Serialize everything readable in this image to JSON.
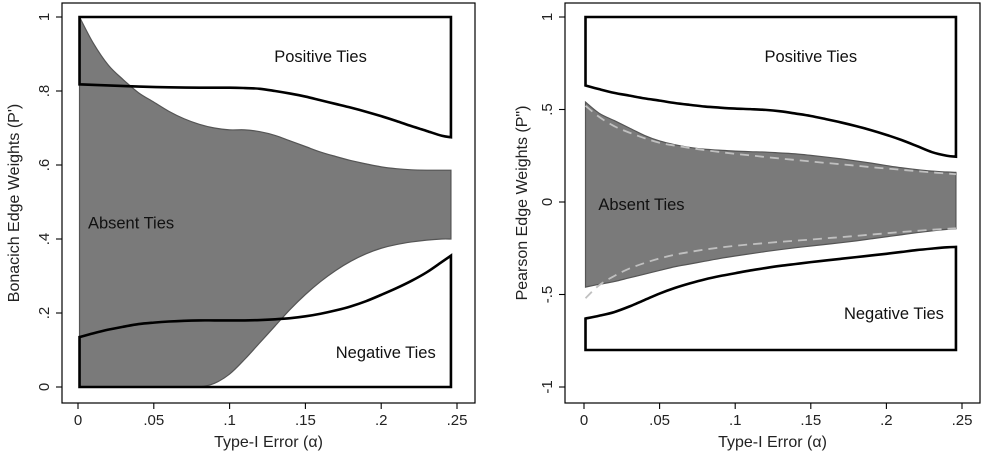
{
  "chart_data": [
    {
      "type": "area",
      "xlabel": "Type-I Error (α)",
      "ylabel": "Bonacich Edge Weights (P')",
      "xlim": [
        0,
        0.25
      ],
      "ylim": [
        0,
        1
      ],
      "xticks": [
        0,
        0.05,
        0.1,
        0.15,
        0.2,
        0.25
      ],
      "xtick_labels": [
        "0",
        ".05",
        ".1",
        ".15",
        ".2",
        ".25"
      ],
      "yticks": [
        0,
        0.2,
        0.4,
        0.6,
        0.8,
        1
      ],
      "ytick_labels": [
        "0",
        ".2",
        ".4",
        ".6",
        ".8",
        "1"
      ],
      "regions": [
        {
          "label": "Positive Ties",
          "x": 0.16,
          "y": 0.895
        },
        {
          "label": "Absent Ties",
          "x": 0.035,
          "y": 0.445
        },
        {
          "label": "Negative Ties",
          "x": 0.203,
          "y": 0.095
        }
      ],
      "absent_band": {
        "x": [
          0.001,
          0.01,
          0.02,
          0.03,
          0.04,
          0.05,
          0.06,
          0.07,
          0.08,
          0.09,
          0.1,
          0.11,
          0.12,
          0.13,
          0.14,
          0.15,
          0.16,
          0.17,
          0.18,
          0.19,
          0.2,
          0.21,
          0.22,
          0.23,
          0.24,
          0.246
        ],
        "upper": [
          1.0,
          0.93,
          0.87,
          0.83,
          0.795,
          0.77,
          0.745,
          0.725,
          0.71,
          0.7,
          0.695,
          0.695,
          0.69,
          0.68,
          0.665,
          0.65,
          0.635,
          0.623,
          0.612,
          0.603,
          0.595,
          0.59,
          0.587,
          0.586,
          0.586,
          0.586
        ],
        "lower": [
          0.0,
          0.0,
          0.0,
          0.0,
          0.0,
          0.0,
          0.0,
          0.0,
          0.0,
          0.01,
          0.035,
          0.075,
          0.12,
          0.165,
          0.21,
          0.25,
          0.285,
          0.315,
          0.34,
          0.36,
          0.375,
          0.385,
          0.392,
          0.397,
          0.4,
          0.4
        ]
      },
      "positive_boundary": {
        "x": [
          0.001,
          0.02,
          0.04,
          0.06,
          0.08,
          0.1,
          0.11,
          0.12,
          0.13,
          0.14,
          0.15,
          0.16,
          0.17,
          0.18,
          0.19,
          0.2,
          0.21,
          0.22,
          0.23,
          0.24,
          0.246
        ],
        "y": [
          0.818,
          0.815,
          0.812,
          0.81,
          0.809,
          0.809,
          0.808,
          0.806,
          0.8,
          0.793,
          0.785,
          0.775,
          0.765,
          0.755,
          0.744,
          0.732,
          0.719,
          0.705,
          0.692,
          0.679,
          0.675
        ]
      },
      "negative_boundary": {
        "x": [
          0.001,
          0.01,
          0.02,
          0.03,
          0.04,
          0.05,
          0.06,
          0.07,
          0.08,
          0.09,
          0.1,
          0.11,
          0.12,
          0.13,
          0.14,
          0.15,
          0.16,
          0.17,
          0.18,
          0.19,
          0.2,
          0.21,
          0.22,
          0.23,
          0.24,
          0.246
        ],
        "y": [
          0.135,
          0.145,
          0.155,
          0.163,
          0.17,
          0.174,
          0.177,
          0.179,
          0.18,
          0.18,
          0.18,
          0.18,
          0.181,
          0.183,
          0.186,
          0.191,
          0.198,
          0.207,
          0.218,
          0.232,
          0.249,
          0.267,
          0.287,
          0.31,
          0.338,
          0.355
        ]
      },
      "positive_top": 1.0,
      "negative_bottom": 0.0,
      "colors": {
        "band_fill": "#7a7a7a",
        "band_stroke": "#555555",
        "boundary": "#000000"
      }
    },
    {
      "type": "area",
      "xlabel": "Type-I Error (α)",
      "ylabel": "Pearson Edge Weights (P\")",
      "xlim": [
        0,
        0.25
      ],
      "ylim": [
        -1,
        1
      ],
      "xticks": [
        0,
        0.05,
        0.1,
        0.15,
        0.2,
        0.25
      ],
      "xtick_labels": [
        "0",
        ".05",
        ".1",
        ".15",
        ".2",
        ".25"
      ],
      "yticks": [
        -1,
        -0.5,
        0,
        0.5,
        1
      ],
      "ytick_labels": [
        "-1",
        "-.5",
        "0",
        ".5",
        "1"
      ],
      "regions": [
        {
          "label": "Positive Ties",
          "x": 0.15,
          "y": 0.79
        },
        {
          "label": "Absent Ties",
          "x": 0.038,
          "y": -0.01
        },
        {
          "label": "Negative Ties",
          "x": 0.205,
          "y": -0.6
        }
      ],
      "absent_band": {
        "x": [
          0.001,
          0.01,
          0.02,
          0.03,
          0.04,
          0.05,
          0.06,
          0.07,
          0.08,
          0.09,
          0.1,
          0.11,
          0.12,
          0.13,
          0.14,
          0.15,
          0.16,
          0.17,
          0.18,
          0.19,
          0.2,
          0.21,
          0.22,
          0.23,
          0.24,
          0.246
        ],
        "upper": [
          0.54,
          0.48,
          0.44,
          0.4,
          0.36,
          0.33,
          0.31,
          0.295,
          0.285,
          0.28,
          0.275,
          0.272,
          0.27,
          0.265,
          0.26,
          0.252,
          0.243,
          0.233,
          0.222,
          0.21,
          0.197,
          0.185,
          0.175,
          0.167,
          0.162,
          0.16
        ],
        "lower": [
          -0.46,
          -0.445,
          -0.43,
          -0.41,
          -0.39,
          -0.37,
          -0.35,
          -0.335,
          -0.32,
          -0.305,
          -0.292,
          -0.28,
          -0.268,
          -0.257,
          -0.247,
          -0.238,
          -0.229,
          -0.22,
          -0.21,
          -0.199,
          -0.188,
          -0.177,
          -0.166,
          -0.156,
          -0.148,
          -0.145
        ]
      },
      "dashed_upper": {
        "x": [
          0.001,
          0.01,
          0.02,
          0.03,
          0.04,
          0.05,
          0.06,
          0.07,
          0.08,
          0.09,
          0.1,
          0.11,
          0.12,
          0.13,
          0.14,
          0.15,
          0.16,
          0.17,
          0.18,
          0.19,
          0.2,
          0.21,
          0.22,
          0.23,
          0.24,
          0.246
        ],
        "y": [
          0.52,
          0.46,
          0.41,
          0.375,
          0.345,
          0.32,
          0.305,
          0.292,
          0.28,
          0.27,
          0.26,
          0.252,
          0.243,
          0.235,
          0.227,
          0.219,
          0.211,
          0.204,
          0.196,
          0.188,
          0.181,
          0.174,
          0.167,
          0.16,
          0.154,
          0.15
        ]
      },
      "dashed_lower": {
        "x": [
          0.001,
          0.01,
          0.02,
          0.03,
          0.04,
          0.05,
          0.06,
          0.07,
          0.08,
          0.09,
          0.1,
          0.11,
          0.12,
          0.13,
          0.14,
          0.15,
          0.16,
          0.17,
          0.18,
          0.19,
          0.2,
          0.21,
          0.22,
          0.23,
          0.24,
          0.246
        ],
        "y": [
          -0.52,
          -0.45,
          -0.4,
          -0.36,
          -0.33,
          -0.305,
          -0.285,
          -0.27,
          -0.257,
          -0.246,
          -0.237,
          -0.229,
          -0.222,
          -0.215,
          -0.209,
          -0.203,
          -0.196,
          -0.19,
          -0.183,
          -0.176,
          -0.169,
          -0.162,
          -0.156,
          -0.15,
          -0.145,
          -0.142
        ]
      },
      "positive_boundary": {
        "x": [
          0.001,
          0.01,
          0.02,
          0.03,
          0.04,
          0.05,
          0.06,
          0.07,
          0.08,
          0.09,
          0.1,
          0.11,
          0.12,
          0.13,
          0.14,
          0.15,
          0.16,
          0.17,
          0.18,
          0.19,
          0.2,
          0.21,
          0.22,
          0.23,
          0.24,
          0.246
        ],
        "y": [
          0.63,
          0.61,
          0.59,
          0.575,
          0.56,
          0.548,
          0.535,
          0.525,
          0.516,
          0.51,
          0.505,
          0.502,
          0.498,
          0.49,
          0.478,
          0.465,
          0.448,
          0.43,
          0.41,
          0.388,
          0.363,
          0.335,
          0.303,
          0.27,
          0.25,
          0.245
        ]
      },
      "negative_boundary": {
        "x": [
          0.001,
          0.01,
          0.02,
          0.03,
          0.04,
          0.05,
          0.06,
          0.07,
          0.08,
          0.09,
          0.1,
          0.11,
          0.12,
          0.13,
          0.14,
          0.15,
          0.16,
          0.17,
          0.18,
          0.19,
          0.2,
          0.21,
          0.22,
          0.23,
          0.24,
          0.246
        ],
        "y": [
          -0.63,
          -0.615,
          -0.595,
          -0.565,
          -0.53,
          -0.495,
          -0.465,
          -0.44,
          -0.418,
          -0.4,
          -0.385,
          -0.37,
          -0.357,
          -0.345,
          -0.335,
          -0.325,
          -0.316,
          -0.307,
          -0.298,
          -0.289,
          -0.28,
          -0.27,
          -0.26,
          -0.252,
          -0.245,
          -0.243
        ]
      },
      "positive_top": 1.0,
      "negative_bottom": -0.8,
      "colors": {
        "band_fill": "#7a7a7a",
        "band_stroke": "#555555",
        "boundary": "#000000",
        "dashed": "#c0c0c0"
      }
    }
  ]
}
